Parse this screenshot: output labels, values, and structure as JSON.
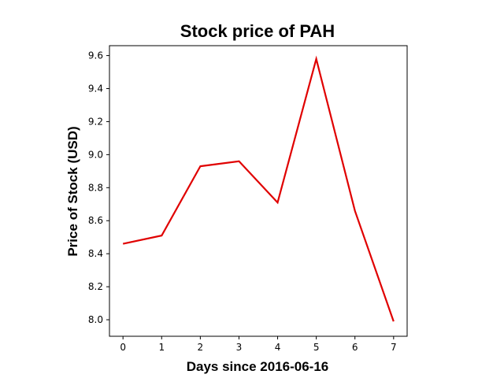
{
  "chart_data": {
    "type": "line",
    "title": "Stock price of PAH",
    "xlabel": "Days since 2016-06-16",
    "ylabel": "Price of Stock (USD)",
    "x": [
      0,
      1,
      2,
      3,
      4,
      5,
      6,
      7
    ],
    "series": [
      {
        "values": [
          8.46,
          8.51,
          8.93,
          8.96,
          8.71,
          9.58,
          8.66,
          7.99
        ]
      }
    ],
    "xlim": [
      -0.35,
      7.35
    ],
    "ylim": [
      7.9,
      9.66
    ],
    "xticks": [
      "0",
      "1",
      "2",
      "3",
      "4",
      "5",
      "6",
      "7"
    ],
    "yticks": [
      "8.0",
      "8.2",
      "8.4",
      "8.6",
      "8.8",
      "9.0",
      "9.2",
      "9.4",
      "9.6"
    ],
    "grid": false,
    "line_color": "#e00000"
  }
}
